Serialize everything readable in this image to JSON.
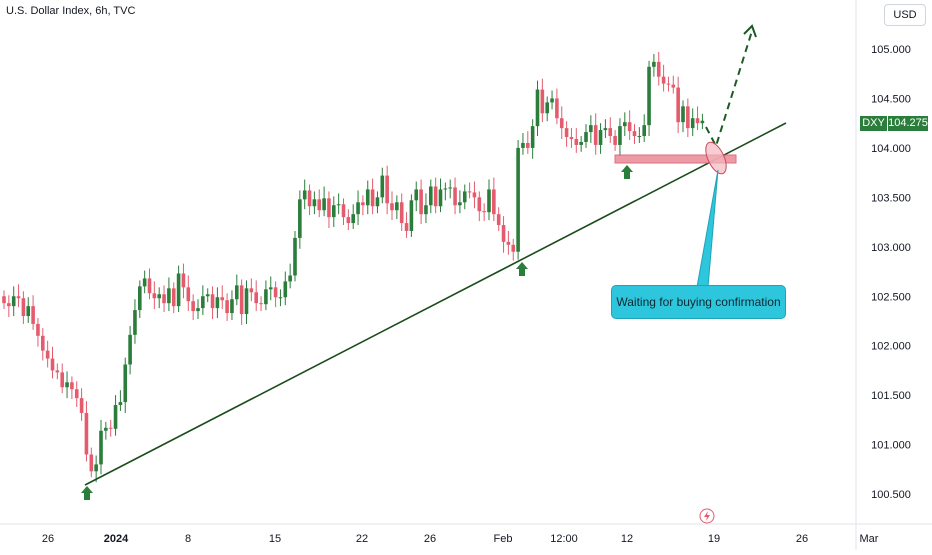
{
  "header": {
    "title": "U.S. Dollar Index, 6h, TVC"
  },
  "currency_button": "USD",
  "price_label": {
    "symbol": "DXY",
    "value": "104.275"
  },
  "annotation": {
    "text": "Waiting for buying confirmation"
  },
  "colors": {
    "up": "#2a7d3a",
    "down": "#e55b6e",
    "trendline": "#1b4d1b",
    "arrow": "#2a7d3a",
    "callout": "#2ec6dc",
    "zone": "#e98a97"
  },
  "icons": {
    "arrows": "up-arrow-icon",
    "event": "flash-icon"
  },
  "chart_data": {
    "type": "candlestick",
    "title": "U.S. Dollar Index, 6h, TVC",
    "xlabel": "",
    "ylabel": "",
    "y_ticks": [
      "105.000",
      "104.500",
      "104.000",
      "103.500",
      "103.000",
      "102.500",
      "102.000",
      "101.500",
      "101.000",
      "100.500"
    ],
    "ylim": [
      100.3,
      105.35
    ],
    "x_ticks": [
      "26",
      "2024",
      "8",
      "15",
      "22",
      "26",
      "Feb",
      "12:00",
      "12",
      "19",
      "26",
      "Mar"
    ],
    "series": [
      {
        "candles_close": [
          102.43,
          102.4,
          102.5,
          102.48,
          102.3,
          102.4,
          102.22,
          102.1,
          101.95,
          101.87,
          101.75,
          101.73,
          101.58,
          101.63,
          101.56,
          101.47,
          101.32,
          100.9,
          100.73,
          100.8,
          101.14,
          101.17,
          101.16,
          101.4,
          101.43,
          101.81,
          102.11,
          102.36,
          102.6,
          102.68,
          102.53,
          102.48,
          102.52,
          102.43,
          102.58,
          102.4,
          102.73,
          102.59,
          102.45,
          102.35,
          102.38,
          102.5,
          102.52,
          102.38,
          102.49,
          102.46,
          102.33,
          102.47,
          102.61,
          102.32,
          102.58,
          102.54,
          102.43,
          102.42,
          102.57,
          102.59,
          102.49,
          102.49,
          102.65,
          102.71,
          103.09,
          103.48,
          103.57,
          103.41,
          103.48,
          103.37,
          103.49,
          103.3,
          103.42,
          103.43,
          103.3,
          103.24,
          103.33,
          103.45,
          103.42,
          103.58,
          103.41,
          103.5,
          103.72,
          103.44,
          103.37,
          103.45,
          103.24,
          103.16,
          103.47,
          103.58,
          103.33,
          103.42,
          103.61,
          103.41,
          103.58,
          103.59,
          103.6,
          103.42,
          103.45,
          103.56,
          103.55,
          103.5,
          103.36,
          103.35,
          103.58,
          103.33,
          103.22,
          103.05,
          103.02,
          102.95,
          104.0,
          104.05,
          104.0,
          104.22,
          104.59,
          104.35,
          104.46,
          104.5,
          104.3,
          104.2,
          104.11,
          104.09,
          104.03,
          104.06,
          104.16,
          104.23,
          104.03,
          104.18,
          104.2,
          104.12,
          104.03,
          104.22,
          104.26,
          104.17,
          104.12,
          104.12,
          104.23,
          104.82,
          104.87,
          104.72,
          104.65,
          104.64,
          104.61,
          104.26,
          104.42,
          104.2,
          104.3,
          104.25,
          104.275
        ],
        "first_candle_date": "Dec 20, 2023",
        "last_candle_date": "Feb 16, 2024",
        "interval": "6h"
      }
    ],
    "trendline": {
      "from": [
        "Dec 28, 2023",
        100.6
      ],
      "to": [
        "Feb 21, 2024",
        104.25
      ]
    },
    "support_zone": {
      "y_range": [
        103.86,
        103.92
      ],
      "x_range": [
        "Feb 12, 2024",
        "Feb 20, 2024"
      ]
    },
    "projection": "dashed line from ~104.2 up to ~105.2 around Feb 21",
    "arrows_at": [
      "Dec 28, 2023",
      "Feb 5, 2024",
      "Feb 12, 2024"
    ],
    "highlighted_circle": "at trendline touch ~104.05 (Feb 20)"
  }
}
